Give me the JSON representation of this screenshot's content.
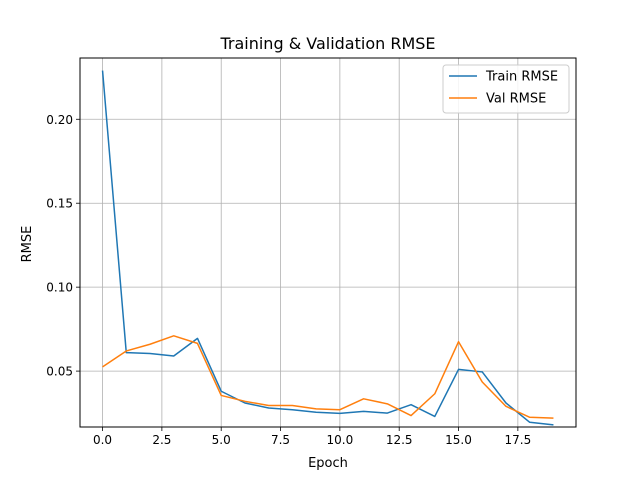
{
  "chart_data": {
    "type": "line",
    "title": "Training & Validation RMSE",
    "xlabel": "Epoch",
    "ylabel": "RMSE",
    "xlim": [
      -0.95,
      19.95
    ],
    "ylim": [
      0.0167,
      0.2365
    ],
    "xticks": [
      0.0,
      2.5,
      5.0,
      7.5,
      10.0,
      12.5,
      15.0,
      17.5
    ],
    "xtick_labels": [
      "0.0",
      "2.5",
      "5.0",
      "7.5",
      "10.0",
      "12.5",
      "15.0",
      "17.5"
    ],
    "yticks": [
      0.05,
      0.1,
      0.15,
      0.2
    ],
    "ytick_labels": [
      "0.05",
      "0.10",
      "0.15",
      "0.20"
    ],
    "grid": true,
    "legend_position": "top-right",
    "x": [
      0,
      1,
      2,
      3,
      4,
      5,
      6,
      7,
      8,
      9,
      10,
      11,
      12,
      13,
      14,
      15,
      16,
      17,
      18,
      19
    ],
    "series": [
      {
        "name": "Train RMSE",
        "color": "#1f77b4",
        "values": [
          0.229,
          0.061,
          0.0605,
          0.059,
          0.0695,
          0.038,
          0.031,
          0.028,
          0.027,
          0.0255,
          0.0248,
          0.026,
          0.025,
          0.03,
          0.023,
          0.051,
          0.0495,
          0.031,
          0.0195,
          0.018
        ]
      },
      {
        "name": "Val RMSE",
        "color": "#ff7f0e",
        "values": [
          0.0525,
          0.062,
          0.066,
          0.071,
          0.0665,
          0.0355,
          0.032,
          0.0295,
          0.0295,
          0.0275,
          0.027,
          0.0335,
          0.0305,
          0.0235,
          0.0365,
          0.0675,
          0.0435,
          0.029,
          0.0225,
          0.022
        ]
      }
    ]
  }
}
